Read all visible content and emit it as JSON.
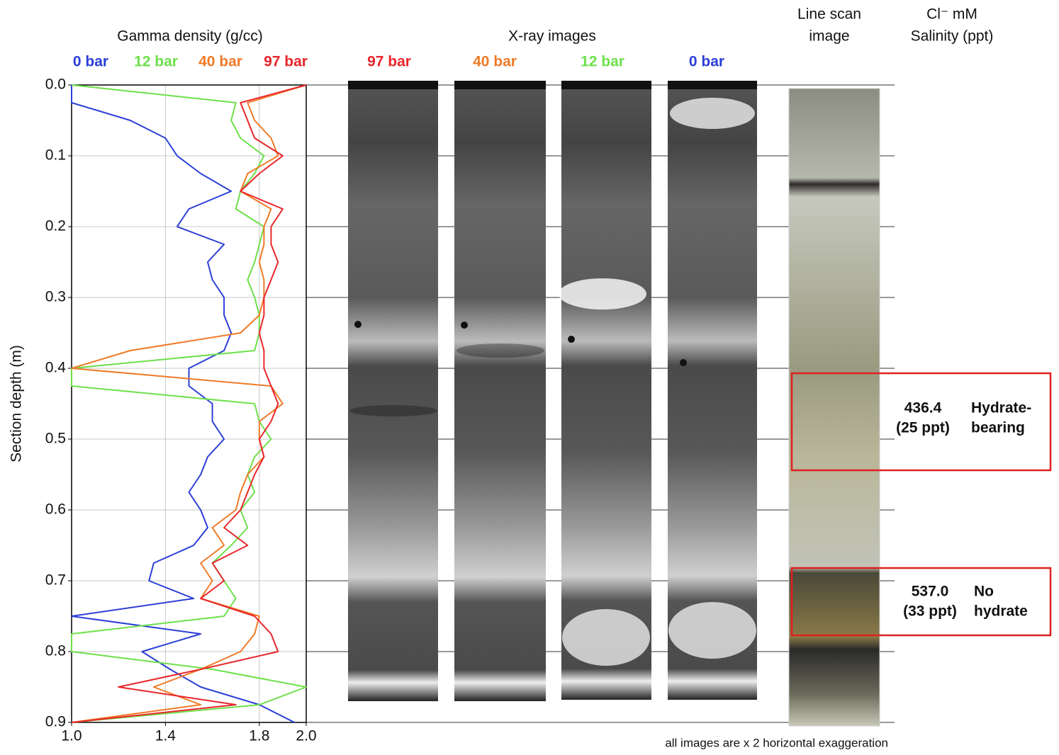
{
  "chart_data": {
    "type": "line",
    "title": "Gamma density (g/cc)",
    "y_label": "Section depth (m)",
    "depth": [
      0,
      0.025,
      0.05,
      0.075,
      0.1,
      0.125,
      0.15,
      0.175,
      0.2,
      0.225,
      0.25,
      0.275,
      0.3,
      0.325,
      0.35,
      0.375,
      0.4,
      0.425,
      0.45,
      0.475,
      0.5,
      0.525,
      0.55,
      0.575,
      0.6,
      0.625,
      0.65,
      0.675,
      0.7,
      0.725,
      0.75,
      0.775,
      0.8,
      0.825,
      0.85,
      0.875,
      0.9
    ],
    "series": [
      {
        "name": "0 bar",
        "color": "#2b3fd6",
        "values": [
          1.0,
          1.0,
          1.25,
          1.4,
          1.45,
          1.55,
          1.68,
          1.5,
          1.45,
          1.65,
          1.58,
          1.6,
          1.65,
          1.65,
          1.68,
          1.65,
          1.5,
          1.5,
          1.6,
          1.6,
          1.65,
          1.58,
          1.55,
          1.5,
          1.55,
          1.58,
          1.52,
          1.35,
          1.33,
          1.52,
          1.0,
          1.55,
          1.3,
          1.42,
          1.55,
          1.8,
          1.95
        ]
      },
      {
        "name": "12 bar",
        "color": "#6ee04a",
        "values": [
          1.0,
          1.7,
          1.68,
          1.72,
          1.82,
          1.78,
          1.72,
          1.7,
          1.82,
          1.8,
          1.78,
          1.75,
          1.78,
          1.8,
          1.8,
          1.78,
          1.0,
          1.0,
          1.78,
          1.8,
          1.85,
          1.78,
          1.75,
          1.78,
          1.72,
          1.75,
          1.68,
          1.6,
          1.65,
          1.7,
          1.65,
          1.0,
          1.0,
          1.6,
          2.0,
          1.8,
          1.0
        ]
      },
      {
        "name": "40 bar",
        "color": "#f07a28",
        "values": [
          2.0,
          1.75,
          1.78,
          1.85,
          1.88,
          1.75,
          1.72,
          1.85,
          1.82,
          1.82,
          1.8,
          1.82,
          1.82,
          1.8,
          1.72,
          1.25,
          1.0,
          1.85,
          1.9,
          1.8,
          1.8,
          1.82,
          1.75,
          1.72,
          1.7,
          1.6,
          1.65,
          1.55,
          1.6,
          1.55,
          1.8,
          1.78,
          1.72,
          1.55,
          1.35,
          1.55,
          1.0
        ]
      },
      {
        "name": "97 bar",
        "color": "#e8262c",
        "values": [
          2.0,
          1.72,
          1.75,
          1.78,
          1.9,
          1.8,
          1.72,
          1.9,
          1.85,
          1.85,
          1.88,
          1.85,
          1.82,
          1.82,
          1.8,
          1.82,
          1.82,
          1.85,
          1.88,
          1.85,
          1.8,
          1.82,
          1.78,
          1.75,
          1.72,
          1.65,
          1.75,
          1.6,
          1.65,
          1.55,
          1.78,
          1.85,
          1.88,
          1.55,
          1.2,
          1.7,
          1.0
        ]
      }
    ],
    "xlim": [
      1.0,
      2.0
    ],
    "xticks": [
      {
        "value": 1.0,
        "label": "1.0"
      },
      {
        "value": 1.4,
        "label": "1.4"
      },
      {
        "value": 1.8,
        "label": "1.8"
      },
      {
        "value": 2.0,
        "label": "2.0"
      }
    ],
    "ylim": [
      0,
      0.9
    ],
    "y_inverted": true,
    "yticks": [
      {
        "value": 0,
        "label": "0.0"
      },
      0.1,
      0.2,
      0.3,
      0.4,
      0.5,
      0.6,
      0.7,
      0.8,
      0.9
    ],
    "grid": true
  },
  "xray": {
    "title": "X-ray images",
    "images": [
      {
        "label": "97 bar",
        "color": "#e8262c"
      },
      {
        "label": "40 bar",
        "color": "#f07a28"
      },
      {
        "label": "12 bar",
        "color": "#6ee04a"
      },
      {
        "label": "0 bar",
        "color": "#2b3fd6"
      }
    ]
  },
  "line_scan": {
    "title": [
      "Line scan",
      "image"
    ]
  },
  "salinity": {
    "title": [
      "Cl⁻ mM",
      "Salinity (ppt)"
    ],
    "intervals": [
      {
        "chloride": "436.4",
        "salinity": "(25 ppt)",
        "note": [
          "Hydrate-",
          "bearing"
        ]
      },
      {
        "chloride": "537.0",
        "salinity": "(33 ppt)",
        "note": [
          "No",
          "hydrate"
        ]
      }
    ]
  },
  "footnote": "all images are x 2 horizontal exaggeration"
}
